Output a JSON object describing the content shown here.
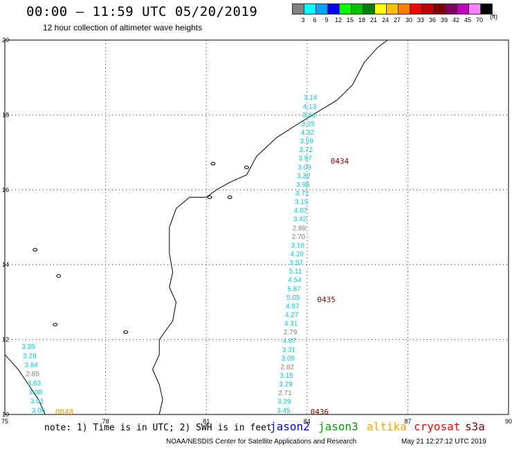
{
  "header": {
    "title": "00:00 – 11:59 UTC 05/20/2019",
    "subtitle": "12 hour collection of altimeter wave heights"
  },
  "legend": {
    "unit": "(ft)",
    "bins": [
      {
        "label": "3",
        "color": "#808080"
      },
      {
        "label": "6",
        "color": "#00ffff"
      },
      {
        "label": "9",
        "color": "#00a0ff"
      },
      {
        "label": "12",
        "color": "#0000ff"
      },
      {
        "label": "15",
        "color": "#00ff00"
      },
      {
        "label": "18",
        "color": "#00c000"
      },
      {
        "label": "21",
        "color": "#008000"
      },
      {
        "label": "24",
        "color": "#ffff00"
      },
      {
        "label": "27",
        "color": "#ffc000"
      },
      {
        "label": "30",
        "color": "#ff8000"
      },
      {
        "label": "33",
        "color": "#ff0000"
      },
      {
        "label": "36",
        "color": "#c00000"
      },
      {
        "label": "39",
        "color": "#800000"
      },
      {
        "label": "42",
        "color": "#800060"
      },
      {
        "label": "45",
        "color": "#c000c0"
      },
      {
        "label": "70",
        "color": "#ff80ff"
      },
      {
        "label": "",
        "color": "#000000"
      }
    ]
  },
  "map": {
    "lon_labels": [
      "75",
      "78",
      "81",
      "84",
      "87",
      "90"
    ],
    "lat_labels": [
      "10",
      "12",
      "14",
      "16",
      "18",
      "20"
    ],
    "lon_range": [
      75,
      90
    ],
    "lat_range": [
      10,
      20
    ]
  },
  "tracks": [
    {
      "name": "track-d434",
      "color": "#00c8d8",
      "time_label": "0434",
      "time_color": "#800000",
      "values": [
        "3.14",
        "4.13",
        "3.44",
        "3.25",
        "4.32",
        "3.59",
        "3.72",
        "3.97",
        "3.09",
        "3.32",
        "3.95",
        "3.71",
        "3.15",
        "4.07",
        "3.42",
        "2.88",
        "2.70",
        "3.18",
        "4.20",
        "3.57",
        "5.11",
        "4.54",
        "5.87",
        "5.05",
        "4.97",
        "4.27",
        "4.31",
        "2.79",
        "4.87",
        "3.31",
        "3.09",
        "2.82",
        "3.15",
        "3.29",
        "2.71",
        "3.29",
        "3.45"
      ]
    },
    {
      "name": "track-d048",
      "color": "#00c8d8",
      "time_label": "0048",
      "time_color": "#ffa000",
      "values": [
        "3.39",
        "3.28",
        "3.84",
        "2.85",
        "3.63",
        "3.08",
        "3.01",
        "3.06"
      ]
    }
  ],
  "pass_labels": {
    "d435": "0435",
    "d436": "0436"
  },
  "footer": {
    "note": "note: 1) Time is in UTC; 2) SWH is in feet",
    "satellites": [
      {
        "name": "jason2",
        "color": "#0000ff"
      },
      {
        "name": "jason3",
        "color": "#00a000"
      },
      {
        "name": "altika",
        "color": "#ffa000"
      },
      {
        "name": "cryosat",
        "color": "#ff0000"
      },
      {
        "name": "s3a",
        "color": "#800000"
      }
    ],
    "credit": "NOAA/NESDIS Center for Satellite Applications and Research",
    "timestamp": "May 21 12:27:12 UTC 2019"
  }
}
